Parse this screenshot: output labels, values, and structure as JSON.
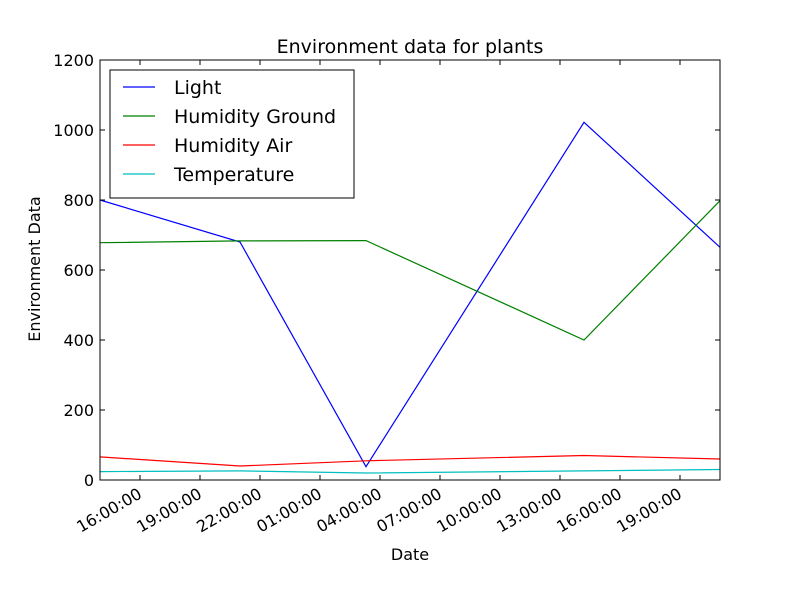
{
  "chart_data": {
    "type": "line",
    "title": "Environment data for plants",
    "xlabel": "Date",
    "ylabel": "Environment Data",
    "x_ticks": [
      "16:00:00",
      "19:00:00",
      "22:00:00",
      "01:00:00",
      "04:00:00",
      "07:00:00",
      "10:00:00",
      "13:00:00",
      "16:00:00",
      "19:00:00"
    ],
    "x_tick_times": [
      16,
      19,
      22,
      25,
      28,
      31,
      34,
      37,
      40,
      43
    ],
    "xlim": [
      14.0,
      45.0
    ],
    "ylim": [
      0,
      1200
    ],
    "y_ticks": [
      0,
      200,
      400,
      600,
      800,
      1000,
      1200
    ],
    "grid": false,
    "legend_position": "upper left",
    "x": [
      14.0,
      21.0,
      27.3,
      38.2,
      45.0
    ],
    "series": [
      {
        "name": "Light",
        "color": "#0000ff",
        "values": [
          800,
          680,
          38,
          1022,
          665
        ]
      },
      {
        "name": "Humidity Ground",
        "color": "#008000",
        "values": [
          678,
          683,
          684,
          400,
          798
        ]
      },
      {
        "name": "Humidity Air",
        "color": "#ff0000",
        "values": [
          66,
          40,
          55,
          70,
          60
        ]
      },
      {
        "name": "Temperature",
        "color": "#00bfbf",
        "values": [
          24,
          26,
          20,
          26,
          30
        ]
      }
    ]
  }
}
